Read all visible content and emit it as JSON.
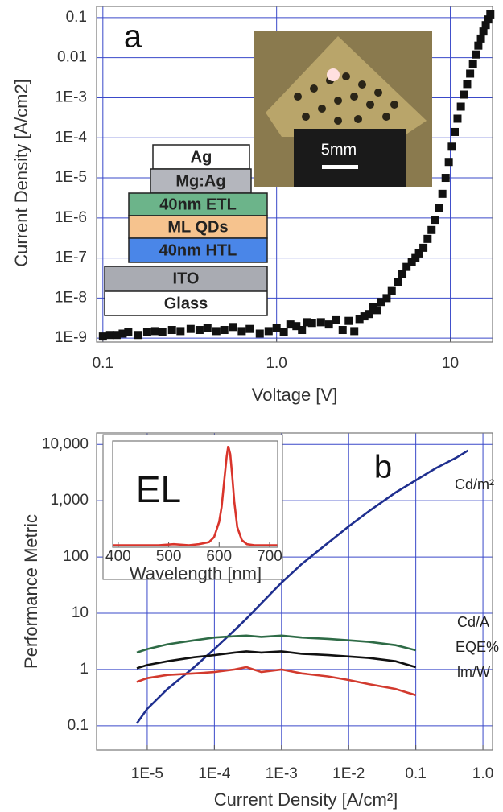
{
  "chart_data": [
    {
      "type": "scatter",
      "panel_label": "a",
      "xlabel": "Voltage [V]",
      "ylabel": "Current Density [A/cm2]",
      "xscale": "log",
      "yscale": "log",
      "grid": true,
      "color": "#111111",
      "xlim": [
        0.092,
        17.5
      ],
      "ylim": [
        8e-10,
        0.19
      ],
      "xticks": [
        0.1,
        {
          "value": 1,
          "label": "1.0"
        },
        10
      ],
      "yticks": [
        0.1,
        0.01,
        {
          "value": 0.001,
          "label": "1E-3"
        },
        {
          "value": 0.0001,
          "label": "1E-4"
        },
        {
          "value": 1e-05,
          "label": "1E-5"
        },
        {
          "value": 1e-06,
          "label": "1E-6"
        },
        {
          "value": 1e-07,
          "label": "1E-7"
        },
        {
          "value": 1e-08,
          "label": "1E-8"
        },
        {
          "value": 1e-09,
          "label": "1E-9"
        }
      ],
      "x": [
        0.1,
        0.11,
        0.12,
        0.13,
        0.14,
        0.16,
        0.18,
        0.2,
        0.22,
        0.25,
        0.28,
        0.32,
        0.36,
        0.4,
        0.45,
        0.5,
        0.56,
        0.63,
        0.7,
        0.8,
        0.9,
        1.0,
        1.1,
        1.2,
        1.3,
        1.4,
        1.5,
        1.6,
        1.8,
        2.0,
        2.2,
        2.4,
        2.6,
        2.8,
        3.0,
        3.2,
        3.4,
        3.6,
        3.8,
        4.0,
        4.3,
        4.6,
        5.0,
        5.3,
        5.6,
        6.0,
        6.3,
        6.6,
        7.0,
        7.4,
        7.8,
        8.2,
        8.6,
        9.0,
        9.4,
        9.8,
        10.2,
        10.6,
        11.0,
        11.5,
        12.0,
        12.5,
        13.0,
        13.5,
        14.0,
        14.5,
        15.0,
        15.5,
        16.0,
        16.5,
        17.0
      ],
      "values": [
        1.1e-09,
        1.2e-09,
        1.2e-09,
        1.3e-09,
        1.4e-09,
        1.2e-09,
        1.4e-09,
        1.5e-09,
        1.4e-09,
        1.6e-09,
        1.5e-09,
        1.7e-09,
        1.6e-09,
        1.8e-09,
        1.5e-09,
        1.6e-09,
        1.9e-09,
        1.5e-09,
        1.7e-09,
        1.3e-09,
        1.5e-09,
        1.8e-09,
        1.4e-09,
        2.2e-09,
        2e-09,
        1.6e-09,
        2.5e-09,
        2.4e-09,
        2.5e-09,
        2.2e-09,
        2.8e-09,
        1.6e-09,
        2.7e-09,
        1.5e-09,
        3e-09,
        3.5e-09,
        4e-09,
        6e-09,
        5e-09,
        8e-09,
        1e-08,
        1.5e-08,
        2.5e-08,
        4e-08,
        6e-08,
        8e-08,
        1e-07,
        1.3e-07,
        1.8e-07,
        3e-07,
        5e-07,
        9e-07,
        1.8e-06,
        4e-06,
        1e-05,
        2.5e-05,
        6e-05,
        0.00014,
        0.0003,
        0.0006,
        0.0012,
        0.0022,
        0.004,
        0.007,
        0.012,
        0.02,
        0.03,
        0.045,
        0.065,
        0.09,
        0.12
      ],
      "layers": [
        {
          "name": "Ag",
          "color": "#ffffff"
        },
        {
          "name": "Mg:Ag",
          "color": "#b4b6bd"
        },
        {
          "name": "40nm ETL",
          "color": "#6cb48a"
        },
        {
          "name": "ML QDs",
          "color": "#f6c38e"
        },
        {
          "name": "40nm HTL",
          "color": "#4a86e8"
        },
        {
          "name": "ITO",
          "color": "#a9abb2"
        },
        {
          "name": "Glass",
          "color": "#ffffff"
        }
      ],
      "photo_label": "5mm"
    },
    {
      "type": "line",
      "panel_label": "b",
      "xlabel": "Current Density [A/cm²]",
      "ylabel": "Performance Metric",
      "xscale": "log",
      "yscale": "log",
      "grid": true,
      "xlim": [
        1.76e-06,
        1.39
      ],
      "ylim": [
        0.037,
        16000
      ],
      "xticks": [
        {
          "value": 1e-05,
          "label": "1E-5"
        },
        {
          "value": 0.0001,
          "label": "1E-4"
        },
        {
          "value": 0.001,
          "label": "1E-3"
        },
        {
          "value": 0.01,
          "label": "1E-2"
        },
        0.1,
        {
          "value": 1,
          "label": "1.0"
        }
      ],
      "yticks": [
        {
          "value": 10000,
          "label": "10,000"
        },
        {
          "value": 1000,
          "label": "1,000"
        },
        100,
        10,
        1,
        0.1
      ],
      "x": [
        7e-06,
        1e-05,
        2e-05,
        5e-05,
        0.0001,
        0.0002,
        0.0003,
        0.0005,
        0.001,
        0.002,
        0.005,
        0.01,
        0.02,
        0.05,
        0.1,
        0.2,
        0.4,
        0.6
      ],
      "series": [
        {
          "name": "Cd/m²",
          "color": "#1f2f8f",
          "values": [
            0.11,
            0.2,
            0.45,
            1.1,
            2.3,
            5,
            8,
            15,
            35,
            75,
            180,
            350,
            650,
            1400,
            2300,
            3800,
            5800,
            7800
          ]
        },
        {
          "name": "Cd/A",
          "color": "#2e6b46",
          "values": [
            2.0,
            2.3,
            2.8,
            3.3,
            3.7,
            3.9,
            4.0,
            3.8,
            4.0,
            3.7,
            3.5,
            3.3,
            3.1,
            2.7,
            2.2,
            null,
            null,
            null
          ]
        },
        {
          "name": "EQE%",
          "color": "#111111",
          "values": [
            1.05,
            1.2,
            1.4,
            1.65,
            1.8,
            2.0,
            2.1,
            2.0,
            2.1,
            1.9,
            1.8,
            1.7,
            1.6,
            1.4,
            1.1,
            null,
            null,
            null
          ]
        },
        {
          "name": "lm/W",
          "color": "#d23a2e",
          "values": [
            0.6,
            0.7,
            0.8,
            0.85,
            0.9,
            1.0,
            1.1,
            0.9,
            1.0,
            0.85,
            0.75,
            0.65,
            0.55,
            0.45,
            0.35,
            null,
            null,
            null
          ]
        }
      ]
    },
    {
      "type": "line",
      "panel_label": "EL",
      "xlabel": "Wavelength [nm]",
      "color": "#d9342b",
      "xlim": [
        389,
        716
      ],
      "ylim": [
        0,
        1.05
      ],
      "xticks": [
        400,
        500,
        600,
        700
      ],
      "x": [
        390,
        420,
        450,
        480,
        510,
        540,
        560,
        580,
        590,
        600,
        605,
        610,
        615,
        618,
        622,
        626,
        630,
        636,
        645,
        655,
        670,
        690,
        715
      ],
      "values": [
        0.02,
        0.02,
        0.02,
        0.02,
        0.03,
        0.02,
        0.03,
        0.05,
        0.1,
        0.25,
        0.4,
        0.65,
        0.9,
        1.0,
        0.92,
        0.7,
        0.45,
        0.2,
        0.07,
        0.03,
        0.02,
        0.02,
        0.02
      ]
    }
  ]
}
